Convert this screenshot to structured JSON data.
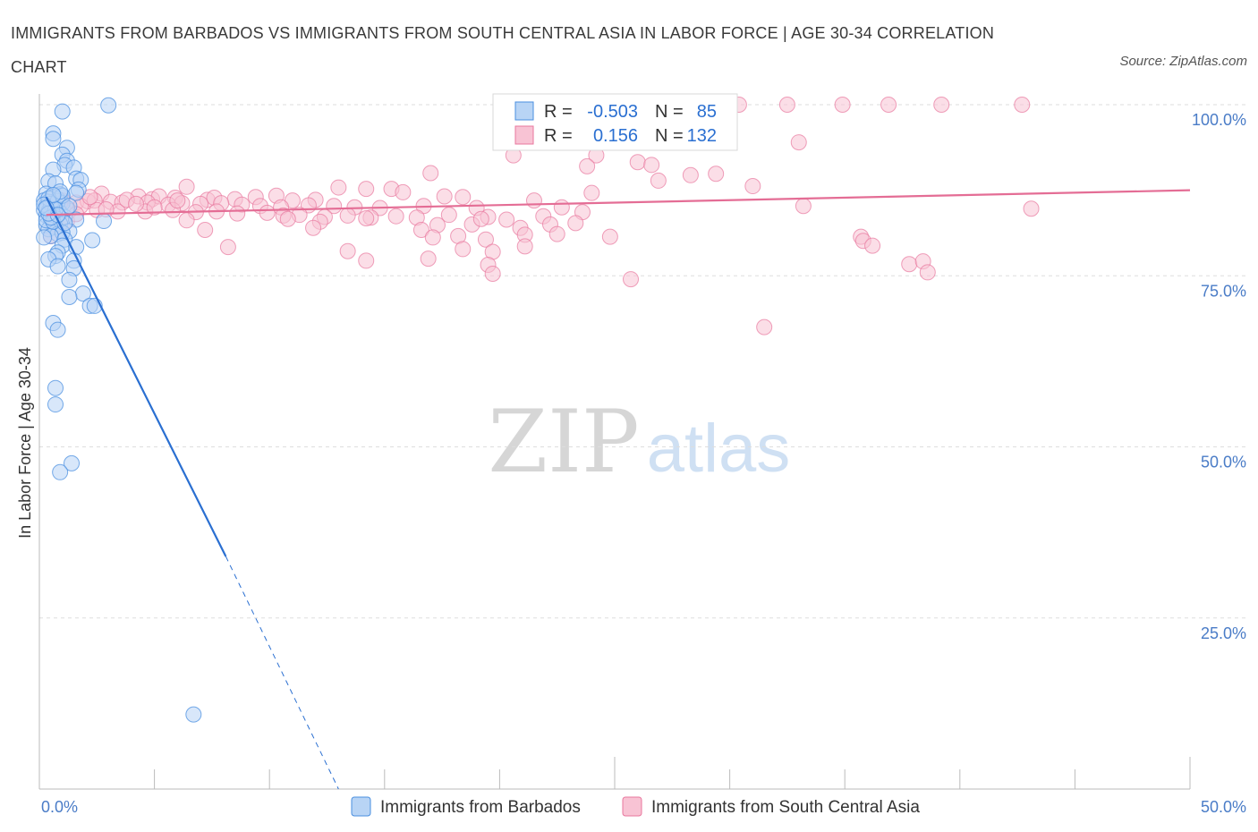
{
  "header": {
    "title": "IMMIGRANTS FROM BARBADOS VS IMMIGRANTS FROM SOUTH CENTRAL ASIA IN LABOR FORCE | AGE 30-34 CORRELATION CHART",
    "source": "Source: ZipAtlas.com"
  },
  "watermark": {
    "zip": "ZIP",
    "atlas": "atlas"
  },
  "colors": {
    "blue": "#4a8fe0",
    "blue_fill": "#b8d4f5",
    "blue_line": "#2a6fd1",
    "pink": "#e8779e",
    "pink_fill": "#f8c3d4",
    "pink_line": "#e46d95",
    "tick_text": "#4a7cc7",
    "grid": "#dddddd"
  },
  "chart_data": {
    "type": "scatter",
    "xlim": [
      0,
      50
    ],
    "ylim": [
      0,
      100
    ],
    "ylabel": "In Labor Force | Age 30-34",
    "x_tick_labels": [
      "0.0%",
      "50.0%"
    ],
    "y_ticks": [
      25,
      50,
      75,
      100
    ],
    "y_tick_labels": [
      "25.0%",
      "50.0%",
      "75.0%",
      "100.0%"
    ],
    "grid": "horizontal dashed",
    "legend_top": [
      {
        "r_label": "R =",
        "r_value": "-0.503",
        "n_label": "N =",
        "n_value": "85"
      },
      {
        "r_label": "R =",
        "r_value": "0.156",
        "n_label": "N =",
        "n_value": "132"
      }
    ],
    "series": [
      {
        "name": "Immigrants from Barbados",
        "color": "#4a8fe0",
        "trend": {
          "x0": 0.3,
          "y0": 86.5,
          "x1": 8.1,
          "y1": 34.0,
          "dash_to_x": 13.0,
          "dash_to_y": 0
        },
        "points": [
          [
            3.0,
            99.9
          ],
          [
            1.0,
            99.0
          ],
          [
            0.6,
            95.8
          ],
          [
            0.6,
            95.0
          ],
          [
            1.2,
            93.7
          ],
          [
            1.0,
            92.7
          ],
          [
            1.2,
            91.8
          ],
          [
            1.1,
            91.2
          ],
          [
            1.5,
            90.8
          ],
          [
            0.6,
            90.5
          ],
          [
            1.6,
            89.2
          ],
          [
            1.8,
            89.0
          ],
          [
            0.4,
            88.8
          ],
          [
            0.7,
            88.5
          ],
          [
            1.7,
            87.6
          ],
          [
            1.6,
            87.1
          ],
          [
            0.3,
            87.0
          ],
          [
            0.9,
            86.9
          ],
          [
            0.6,
            86.5
          ],
          [
            0.8,
            86.2
          ],
          [
            0.2,
            86.0
          ],
          [
            0.4,
            85.8
          ],
          [
            1.0,
            85.6
          ],
          [
            0.6,
            85.3
          ],
          [
            0.3,
            85.2
          ],
          [
            0.5,
            85.0
          ],
          [
            0.8,
            84.8
          ],
          [
            0.2,
            84.6
          ],
          [
            0.4,
            84.4
          ],
          [
            0.9,
            84.2
          ],
          [
            0.6,
            84.0
          ],
          [
            0.3,
            83.8
          ],
          [
            1.1,
            83.6
          ],
          [
            0.7,
            83.4
          ],
          [
            1.6,
            83.2
          ],
          [
            2.8,
            83.0
          ],
          [
            0.5,
            82.8
          ],
          [
            0.9,
            82.6
          ],
          [
            0.3,
            82.4
          ],
          [
            0.7,
            82.1
          ],
          [
            0.4,
            81.8
          ],
          [
            1.3,
            81.5
          ],
          [
            0.8,
            81.1
          ],
          [
            1.0,
            81.3
          ],
          [
            0.5,
            80.8
          ],
          [
            0.2,
            80.6
          ],
          [
            1.1,
            80.3
          ],
          [
            2.3,
            80.2
          ],
          [
            1.0,
            79.4
          ],
          [
            1.6,
            79.2
          ],
          [
            0.8,
            78.4
          ],
          [
            0.7,
            77.9
          ],
          [
            0.4,
            77.4
          ],
          [
            1.5,
            77.2
          ],
          [
            0.8,
            76.4
          ],
          [
            1.5,
            76.1
          ],
          [
            1.3,
            74.4
          ],
          [
            1.9,
            72.4
          ],
          [
            1.3,
            71.9
          ],
          [
            2.2,
            70.6
          ],
          [
            2.4,
            70.6
          ],
          [
            0.6,
            68.1
          ],
          [
            0.8,
            67.1
          ],
          [
            0.7,
            58.6
          ],
          [
            0.7,
            56.2
          ],
          [
            1.4,
            47.6
          ],
          [
            0.9,
            46.3
          ],
          [
            6.7,
            10.9
          ],
          [
            0.5,
            85.5
          ],
          [
            0.8,
            85.9
          ],
          [
            1.2,
            84.9
          ],
          [
            0.3,
            83.1
          ],
          [
            0.6,
            82.9
          ],
          [
            1.0,
            86.7
          ],
          [
            0.4,
            86.3
          ],
          [
            0.2,
            85.4
          ],
          [
            0.7,
            84.7
          ],
          [
            1.3,
            85.2
          ],
          [
            0.5,
            83.5
          ],
          [
            0.9,
            87.3
          ],
          [
            0.6,
            86.8
          ],
          [
            0.4,
            84.1
          ],
          [
            1.1,
            82.7
          ],
          [
            0.8,
            83.9
          ],
          [
            0.3,
            84.9
          ]
        ]
      },
      {
        "name": "Immigrants from South Central Asia",
        "color": "#e8779e",
        "trend": {
          "x0": 0.3,
          "y0": 83.9,
          "x1": 50.0,
          "y1": 87.5
        },
        "points": [
          [
            30.4,
            100.0
          ],
          [
            34.9,
            100.0
          ],
          [
            36.9,
            100.0
          ],
          [
            32.5,
            100.0
          ],
          [
            42.7,
            100.0
          ],
          [
            39.2,
            100.0
          ],
          [
            29.4,
            97.5
          ],
          [
            33.0,
            94.5
          ],
          [
            24.2,
            92.6
          ],
          [
            20.6,
            92.6
          ],
          [
            26.0,
            91.6
          ],
          [
            23.8,
            91.0
          ],
          [
            26.6,
            91.2
          ],
          [
            17.0,
            90.0
          ],
          [
            29.4,
            89.9
          ],
          [
            28.3,
            89.7
          ],
          [
            26.9,
            88.9
          ],
          [
            31.0,
            88.1
          ],
          [
            6.4,
            88.0
          ],
          [
            13.0,
            87.9
          ],
          [
            14.2,
            87.7
          ],
          [
            15.3,
            87.7
          ],
          [
            15.8,
            87.2
          ],
          [
            24.0,
            87.1
          ],
          [
            2.7,
            87.0
          ],
          [
            4.3,
            86.6
          ],
          [
            4.9,
            86.2
          ],
          [
            5.2,
            86.6
          ],
          [
            5.9,
            86.4
          ],
          [
            7.3,
            86.1
          ],
          [
            7.6,
            86.4
          ],
          [
            8.5,
            86.2
          ],
          [
            9.4,
            86.5
          ],
          [
            10.3,
            86.7
          ],
          [
            11.0,
            86.0
          ],
          [
            12.0,
            86.1
          ],
          [
            17.6,
            86.6
          ],
          [
            18.4,
            86.5
          ],
          [
            21.5,
            86.0
          ],
          [
            1.0,
            86.0
          ],
          [
            1.6,
            85.7
          ],
          [
            2.1,
            85.9
          ],
          [
            2.4,
            86.0
          ],
          [
            3.1,
            85.8
          ],
          [
            3.6,
            85.7
          ],
          [
            4.7,
            85.7
          ],
          [
            5.6,
            85.4
          ],
          [
            6.2,
            85.6
          ],
          [
            7.0,
            85.5
          ],
          [
            7.9,
            85.6
          ],
          [
            8.8,
            85.4
          ],
          [
            9.6,
            85.2
          ],
          [
            10.5,
            85.0
          ],
          [
            11.7,
            85.3
          ],
          [
            12.8,
            85.2
          ],
          [
            13.7,
            85.0
          ],
          [
            14.8,
            84.9
          ],
          [
            16.7,
            85.2
          ],
          [
            19.0,
            84.9
          ],
          [
            22.7,
            85.0
          ],
          [
            33.2,
            85.2
          ],
          [
            43.1,
            84.8
          ],
          [
            0.6,
            84.5
          ],
          [
            1.3,
            84.5
          ],
          [
            2.5,
            84.6
          ],
          [
            3.4,
            84.4
          ],
          [
            4.6,
            84.4
          ],
          [
            5.8,
            84.6
          ],
          [
            6.8,
            84.3
          ],
          [
            7.7,
            84.4
          ],
          [
            8.6,
            84.1
          ],
          [
            9.9,
            84.2
          ],
          [
            10.6,
            83.8
          ],
          [
            11.3,
            83.9
          ],
          [
            12.4,
            83.6
          ],
          [
            13.4,
            83.8
          ],
          [
            14.4,
            83.5
          ],
          [
            15.5,
            83.7
          ],
          [
            16.4,
            83.5
          ],
          [
            17.8,
            83.9
          ],
          [
            19.5,
            83.6
          ],
          [
            20.3,
            83.2
          ],
          [
            21.9,
            83.7
          ],
          [
            23.6,
            84.3
          ],
          [
            6.4,
            83.1
          ],
          [
            10.8,
            83.3
          ],
          [
            12.2,
            82.9
          ],
          [
            14.2,
            83.4
          ],
          [
            17.3,
            82.4
          ],
          [
            18.8,
            82.5
          ],
          [
            19.2,
            83.3
          ],
          [
            20.9,
            82.0
          ],
          [
            22.2,
            82.5
          ],
          [
            23.3,
            82.7
          ],
          [
            7.2,
            81.7
          ],
          [
            11.9,
            82.0
          ],
          [
            16.6,
            81.7
          ],
          [
            17.1,
            80.6
          ],
          [
            18.2,
            80.8
          ],
          [
            19.4,
            80.3
          ],
          [
            21.1,
            81.0
          ],
          [
            22.5,
            81.1
          ],
          [
            24.8,
            80.7
          ],
          [
            35.7,
            80.7
          ],
          [
            35.8,
            80.1
          ],
          [
            36.2,
            79.4
          ],
          [
            8.2,
            79.2
          ],
          [
            13.4,
            78.6
          ],
          [
            18.4,
            78.9
          ],
          [
            19.7,
            78.5
          ],
          [
            21.1,
            79.3
          ],
          [
            14.2,
            77.2
          ],
          [
            16.9,
            77.5
          ],
          [
            19.5,
            76.6
          ],
          [
            37.8,
            76.7
          ],
          [
            38.4,
            77.1
          ],
          [
            19.7,
            75.3
          ],
          [
            25.7,
            74.5
          ],
          [
            38.6,
            75.5
          ],
          [
            31.5,
            67.5
          ],
          [
            0.5,
            80.8
          ],
          [
            0.8,
            82.2
          ],
          [
            1.2,
            83.0
          ],
          [
            1.8,
            85.2
          ],
          [
            2.2,
            86.5
          ],
          [
            3.8,
            86.1
          ],
          [
            5.0,
            85.0
          ],
          [
            6.0,
            86.0
          ],
          [
            4.2,
            85.5
          ],
          [
            2.9,
            84.7
          ],
          [
            1.6,
            84.0
          ],
          [
            0.9,
            85.6
          ]
        ]
      }
    ]
  },
  "legend_bottom": [
    {
      "label": "Immigrants from Barbados"
    },
    {
      "label": "Immigrants from South Central Asia"
    }
  ]
}
